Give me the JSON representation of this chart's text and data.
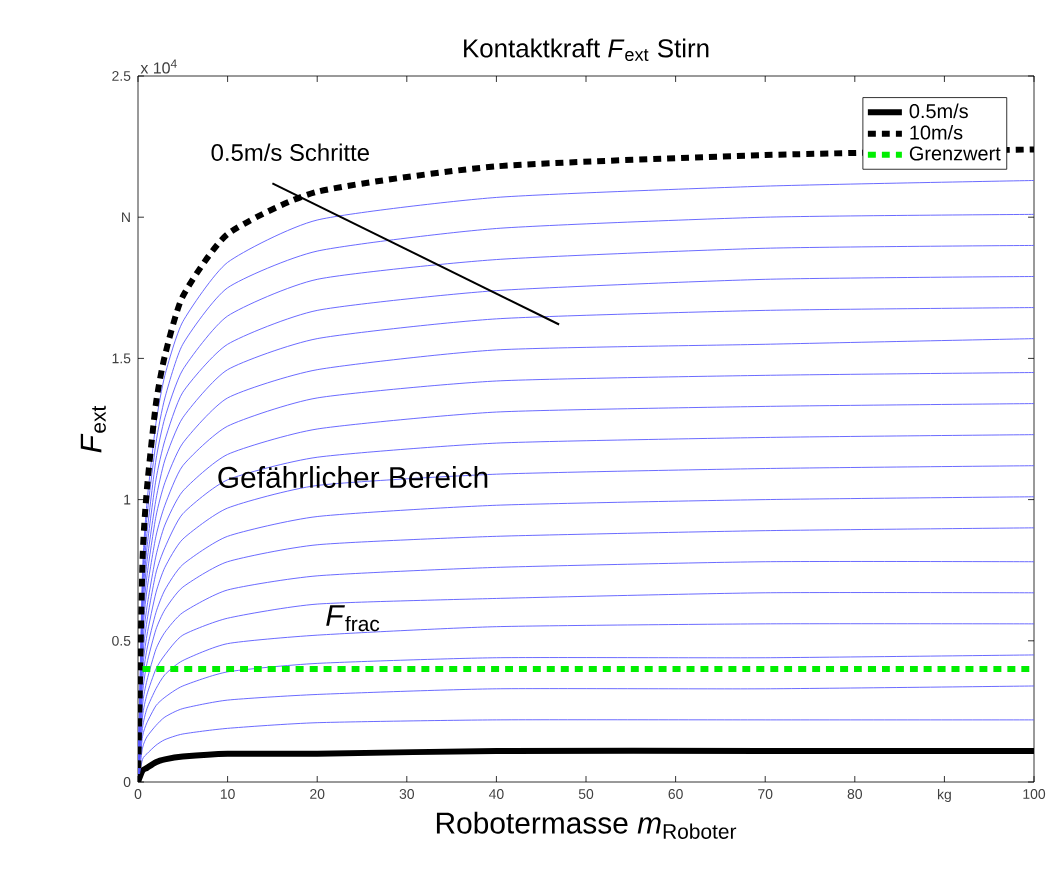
{
  "chart_data": {
    "type": "line",
    "title": "Kontaktkraft *F*$_{ext}$ Stirn",
    "xlabel": "Robotermasse *m*$_{Roboter}$",
    "ylabel": "*F*$_{ext}$",
    "x": [
      0,
      0.5,
      1,
      2,
      3,
      5,
      10,
      20,
      40,
      70,
      100
    ],
    "xlim": [
      0,
      100
    ],
    "ylim": [
      0,
      2.5
    ],
    "xticks": [
      0,
      10,
      20,
      30,
      40,
      50,
      60,
      70,
      80,
      {
        "value": 90,
        "label": "kg"
      },
      100
    ],
    "yticks": [
      0,
      0.5,
      1,
      1.5,
      {
        "value": 2,
        "label": "N"
      },
      2.5
    ],
    "grid": false,
    "legend": "top right",
    "marker": "none",
    "series": [
      {
        "name": "0.5m/s",
        "color": "#000000",
        "line_style": "solid",
        "values": [
          0,
          0.04,
          0.05,
          0.07,
          0.08,
          0.09,
          0.1,
          0.1,
          0.11,
          0.11,
          0.11
        ]
      },
      {
        "color": "#5a5aff",
        "line_style": "solid",
        "values": [
          0,
          0.08,
          0.1,
          0.13,
          0.15,
          0.17,
          0.19,
          0.21,
          0.22,
          0.22,
          0.22
        ]
      },
      {
        "color": "#5a5aff",
        "line_style": "solid",
        "values": [
          0,
          0.12,
          0.16,
          0.2,
          0.23,
          0.26,
          0.29,
          0.31,
          0.33,
          0.33,
          0.34
        ]
      },
      {
        "color": "#5a5aff",
        "line_style": "solid",
        "values": [
          0,
          0.16,
          0.21,
          0.27,
          0.3,
          0.34,
          0.39,
          0.42,
          0.44,
          0.44,
          0.45
        ]
      },
      {
        "color": "#5a5aff",
        "line_style": "solid",
        "values": [
          0,
          0.19,
          0.26,
          0.33,
          0.38,
          0.43,
          0.49,
          0.52,
          0.55,
          0.56,
          0.56
        ]
      },
      {
        "color": "#5a5aff",
        "line_style": "solid",
        "values": [
          0,
          0.23,
          0.31,
          0.4,
          0.45,
          0.52,
          0.58,
          0.63,
          0.65,
          0.67,
          0.67
        ]
      },
      {
        "color": "#5a5aff",
        "line_style": "solid",
        "values": [
          0,
          0.27,
          0.36,
          0.47,
          0.53,
          0.6,
          0.68,
          0.73,
          0.76,
          0.78,
          0.78
        ]
      },
      {
        "color": "#5a5aff",
        "line_style": "solid",
        "values": [
          0,
          0.31,
          0.42,
          0.54,
          0.61,
          0.69,
          0.78,
          0.84,
          0.87,
          0.89,
          0.9
        ]
      },
      {
        "color": "#5a5aff",
        "line_style": "solid",
        "values": [
          0,
          0.35,
          0.47,
          0.6,
          0.68,
          0.77,
          0.87,
          0.94,
          0.98,
          1,
          1.01
        ]
      },
      {
        "color": "#5a5aff",
        "line_style": "solid",
        "values": [
          0,
          0.39,
          0.52,
          0.67,
          0.76,
          0.86,
          0.97,
          1.05,
          1.09,
          1.11,
          1.12
        ]
      },
      {
        "color": "#5a5aff",
        "line_style": "solid",
        "values": [
          0,
          0.43,
          0.57,
          0.74,
          0.83,
          0.95,
          1.07,
          1.15,
          1.2,
          1.22,
          1.23
        ]
      },
      {
        "color": "#5a5aff",
        "line_style": "solid",
        "values": [
          0,
          0.47,
          0.62,
          0.8,
          0.91,
          1.03,
          1.16,
          1.25,
          1.31,
          1.33,
          1.34
        ]
      },
      {
        "color": "#5a5aff",
        "line_style": "solid",
        "values": [
          0,
          0.51,
          0.68,
          0.87,
          0.98,
          1.12,
          1.26,
          1.36,
          1.42,
          1.44,
          1.45
        ]
      },
      {
        "color": "#5a5aff",
        "line_style": "solid",
        "values": [
          0,
          0.54,
          0.73,
          0.94,
          1.06,
          1.2,
          1.36,
          1.46,
          1.53,
          1.55,
          1.57
        ]
      },
      {
        "color": "#5a5aff",
        "line_style": "solid",
        "values": [
          0,
          0.58,
          0.78,
          1,
          1.14,
          1.29,
          1.46,
          1.57,
          1.64,
          1.67,
          1.68
        ]
      },
      {
        "color": "#5a5aff",
        "line_style": "solid",
        "values": [
          0,
          0.62,
          0.83,
          1.07,
          1.21,
          1.38,
          1.55,
          1.67,
          1.74,
          1.78,
          1.79
        ]
      },
      {
        "color": "#5a5aff",
        "line_style": "solid",
        "values": [
          0,
          0.66,
          0.88,
          1.14,
          1.29,
          1.46,
          1.65,
          1.78,
          1.85,
          1.89,
          1.9
        ]
      },
      {
        "color": "#5a5aff",
        "line_style": "solid",
        "values": [
          0,
          0.7,
          0.94,
          1.2,
          1.36,
          1.55,
          1.75,
          1.88,
          1.96,
          2,
          2.01
        ]
      },
      {
        "color": "#5a5aff",
        "line_style": "solid",
        "values": [
          0,
          0.74,
          0.99,
          1.27,
          1.44,
          1.63,
          1.84,
          1.99,
          2.07,
          2.11,
          2.13
        ]
      },
      {
        "name": "10m/s",
        "color": "#000000",
        "line_style": "dashed",
        "values": [
          0,
          0.78,
          1.04,
          1.34,
          1.51,
          1.72,
          1.94,
          2.09,
          2.18,
          2.22,
          2.24
        ]
      },
      {
        "name": "Grenzwert",
        "color": "#00ee00",
        "line_style": "dashed",
        "x": [
          0.5,
          100
        ],
        "values": [
          0.4,
          0.4
        ]
      }
    ],
    "annotations": [
      {
        "text": "0.5m/s Schritte",
        "x": 47,
        "y": 1.62
      },
      "Gefährlicher Bereich",
      "*F*$_{frac}$",
      "x 10$^{4}$"
    ]
  }
}
